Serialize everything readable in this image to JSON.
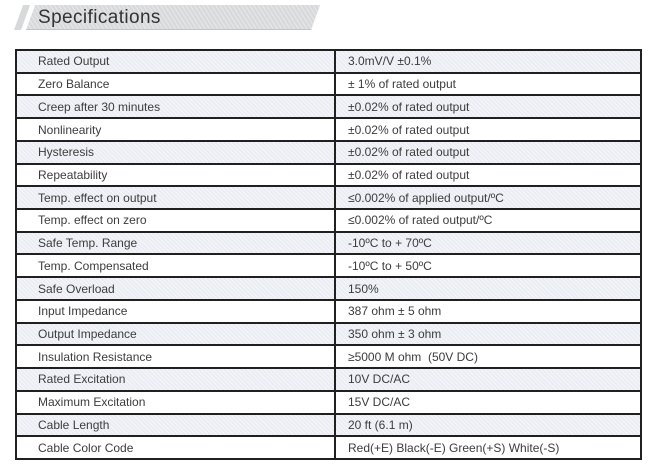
{
  "header": {
    "title": "Specifications"
  },
  "colors": {
    "banner_bg": "#d7d9da",
    "row_shaded_bg": "#eaedf3",
    "row_plain_bg": "#ffffff",
    "border": "#202020",
    "text": "#3c3c3c"
  },
  "table": {
    "rows": [
      {
        "label": "Rated Output",
        "value": "3.0mV/V ±0.1%"
      },
      {
        "label": "Zero Balance",
        "value": "± 1% of rated output"
      },
      {
        "label": "Creep after 30 minutes",
        "value": "±0.02% of rated output"
      },
      {
        "label": "Nonlinearity",
        "value": "±0.02% of rated output"
      },
      {
        "label": "Hysteresis",
        "value": "±0.02% of rated output"
      },
      {
        "label": "Repeatability",
        "value": "±0.02% of rated output"
      },
      {
        "label": "Temp. effect on output",
        "value": "≤0.002% of applied output/ºC"
      },
      {
        "label": "Temp. effect on zero",
        "value": "≤0.002% of rated output/ºC"
      },
      {
        "label": "Safe Temp. Range",
        "value": "-10ºC to + 70ºC"
      },
      {
        "label": "Temp. Compensated",
        "value": "-10ºC to + 50ºC"
      },
      {
        "label": "Safe Overload",
        "value": "150%"
      },
      {
        "label": "Input Impedance",
        "value": "387 ohm ± 5 ohm"
      },
      {
        "label": "Output Impedance",
        "value": "350 ohm ± 3 ohm"
      },
      {
        "label": "Insulation Resistance",
        "value": "≥5000 M ohm  (50V DC)"
      },
      {
        "label": "Rated Excitation",
        "value": "10V DC/AC"
      },
      {
        "label": "Maximum Excitation",
        "value": "15V DC/AC"
      },
      {
        "label": "Cable Length",
        "value": "20 ft (6.1 m)"
      },
      {
        "label": "Cable Color Code",
        "value": "Red(+E) Black(-E) Green(+S) White(-S)"
      }
    ]
  }
}
